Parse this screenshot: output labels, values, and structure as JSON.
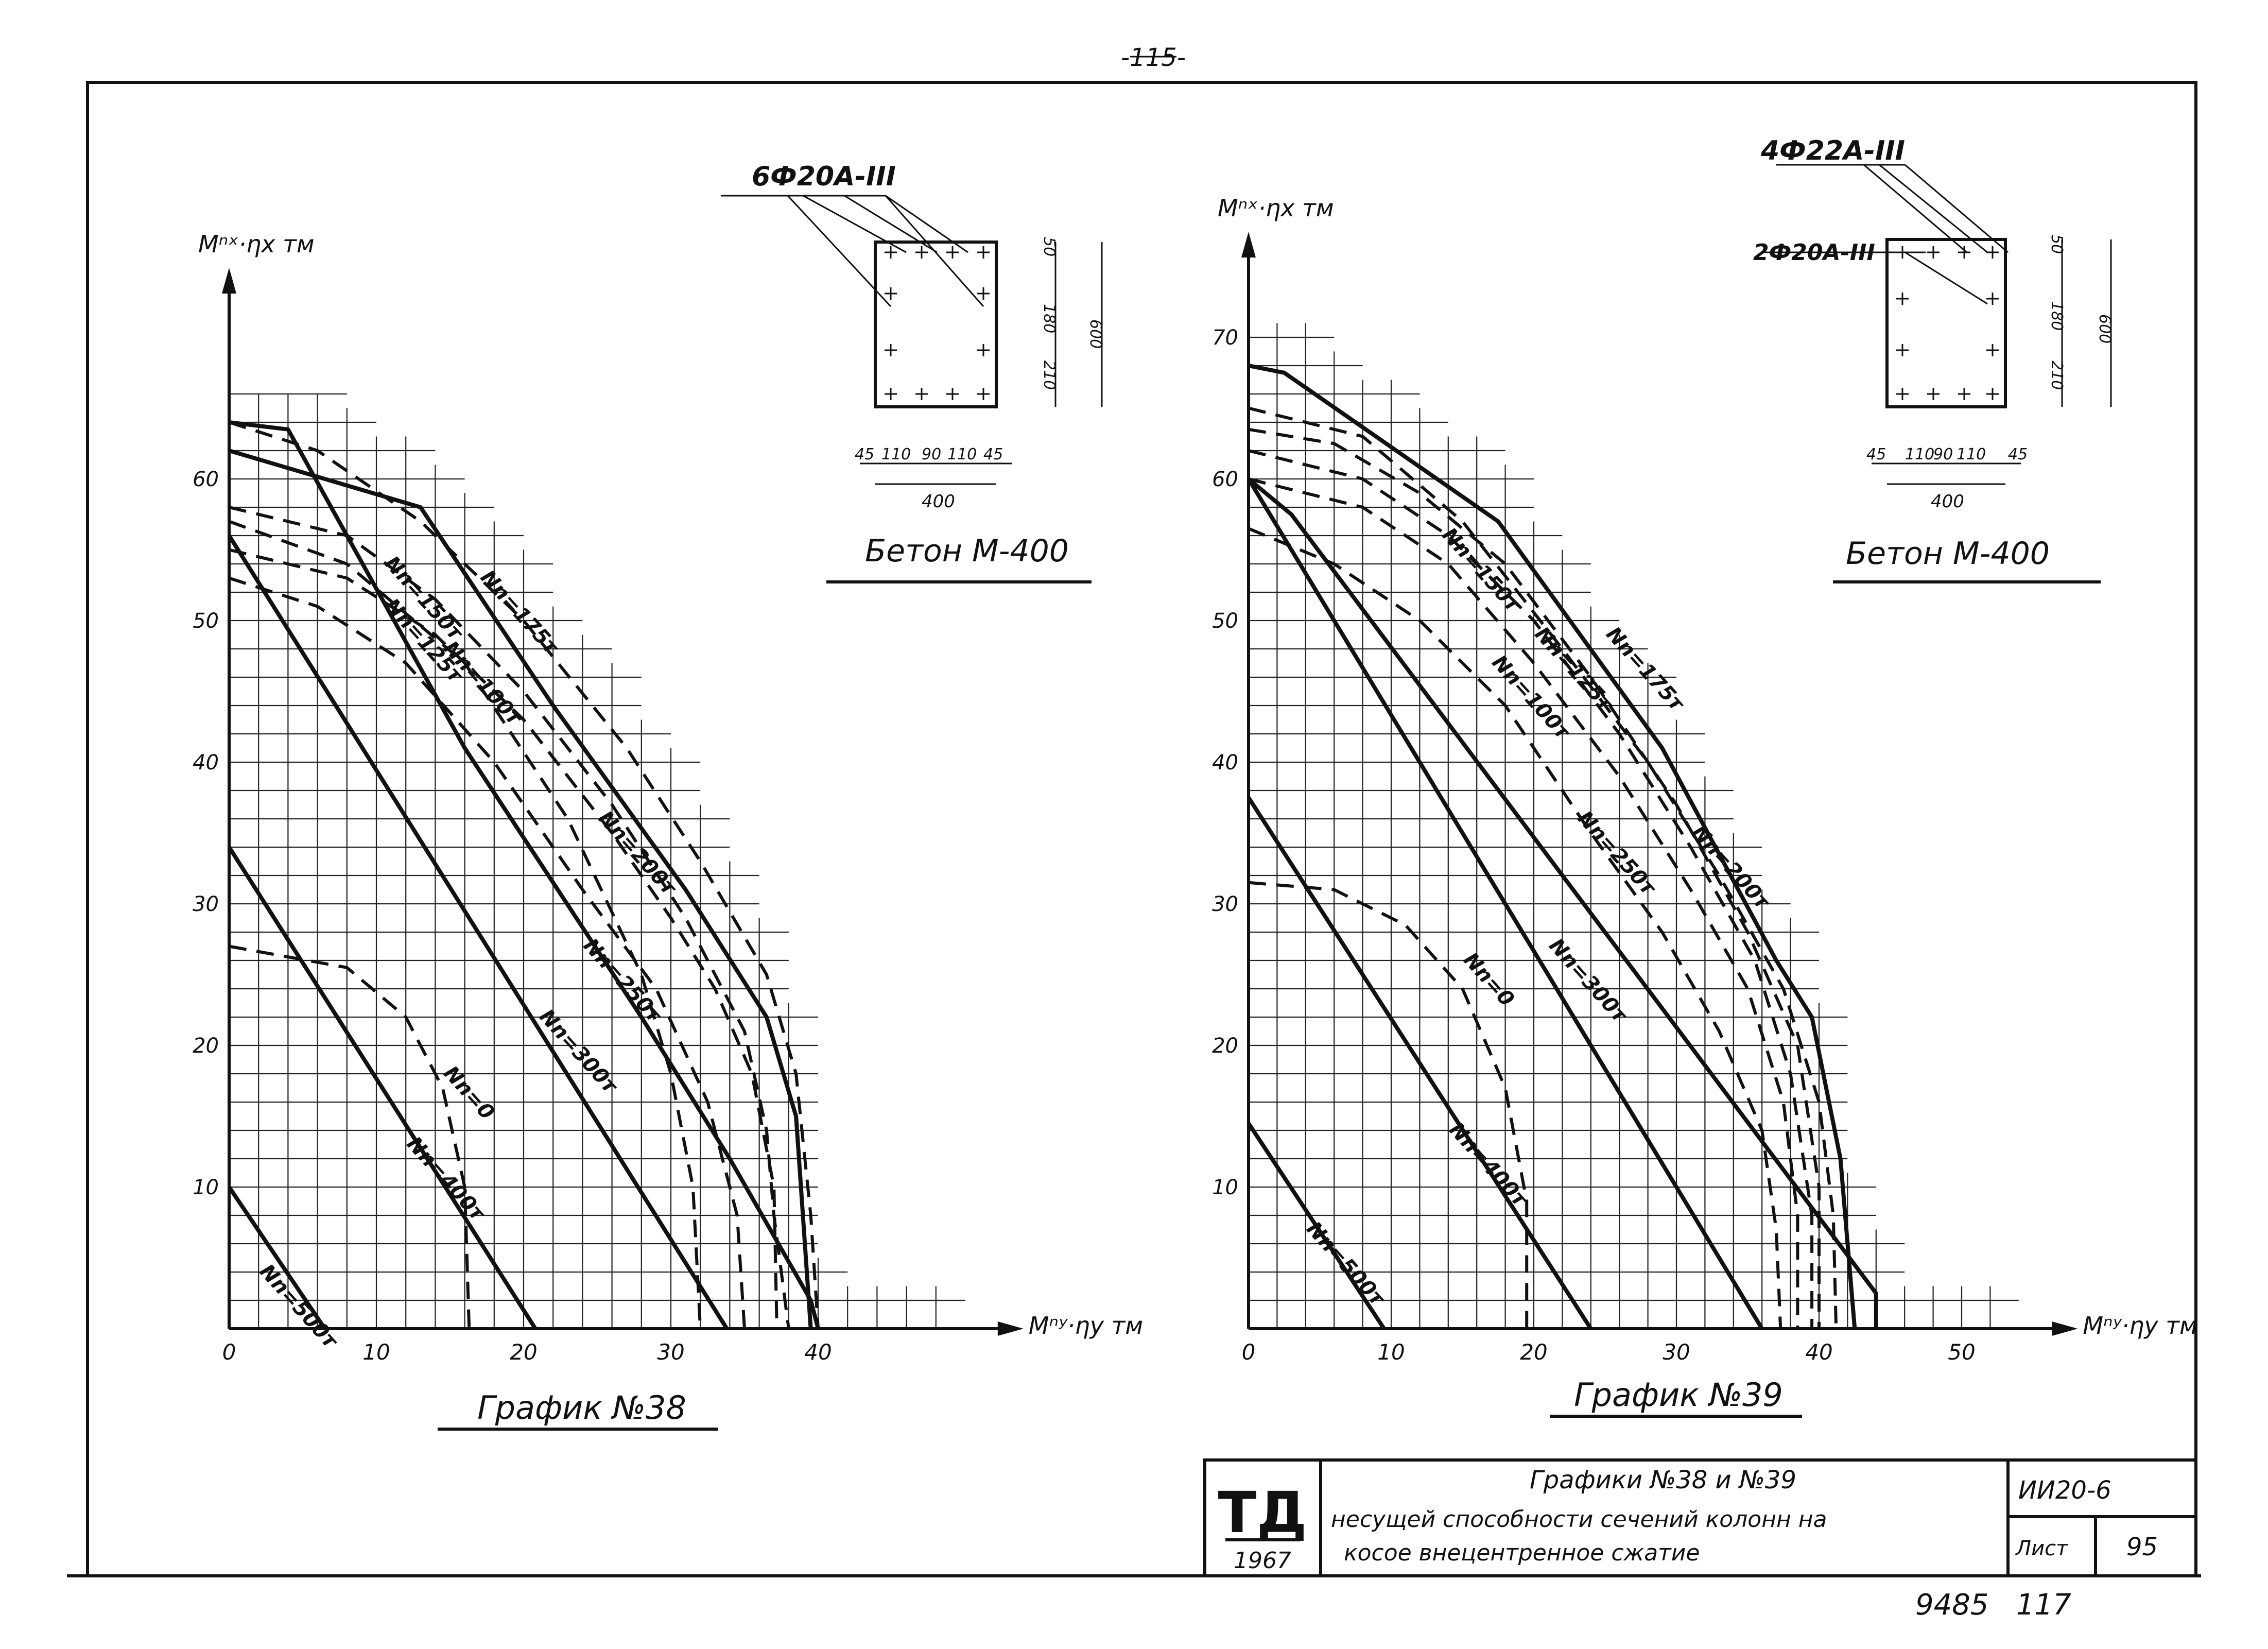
{
  "page_number": "-115-",
  "stamp": {
    "logo": "ТД",
    "year": "1967"
  },
  "title_block": {
    "line1": "Графики №38 и №39",
    "line2": "несущей способности сечений колонн на",
    "line3": "косое внецентренное сжатие",
    "code": "ИИ20-6",
    "sheet_label": "Лист",
    "sheet_number": "95"
  },
  "inventory": "9485   117",
  "chart_data": [
    {
      "type": "line",
      "title": "График №38",
      "xlabel": "Mⁿʸ·ηy тм",
      "ylabel": "Mⁿˣ·ηx тм",
      "xlim": [
        0,
        48
      ],
      "ylim": [
        0,
        66
      ],
      "xticks": [
        "0",
        "10",
        "20",
        "30",
        "40"
      ],
      "yticks": [
        "10",
        "20",
        "30",
        "40",
        "50",
        "60"
      ],
      "section": {
        "rebar": "6Ф20А-III",
        "concrete": "Бетон М-400",
        "width": "400",
        "height": "600",
        "dims_x": [
          "45",
          "110",
          "90",
          "110",
          "45"
        ],
        "dims_y": [
          "50",
          "180",
          "210",
          "600"
        ]
      },
      "series": [
        {
          "name": "Nn=500т",
          "style": "solid",
          "label_at": [
            2,
            4
          ],
          "points": [
            [
              0,
              10
            ],
            [
              6.5,
              0
            ]
          ]
        },
        {
          "name": "Nn=400т",
          "style": "solid",
          "label_at": [
            12,
            13
          ],
          "points": [
            [
              0,
              34
            ],
            [
              20.8,
              0
            ]
          ]
        },
        {
          "name": "Nn=0",
          "style": "dash",
          "label_at": [
            14.5,
            18
          ],
          "points": [
            [
              0,
              27
            ],
            [
              8,
              25.5
            ],
            [
              12,
              22
            ],
            [
              14.5,
              17
            ],
            [
              16,
              10
            ],
            [
              16.3,
              0
            ]
          ]
        },
        {
          "name": "Nn=300т",
          "style": "solid",
          "label_at": [
            21,
            22
          ],
          "points": [
            [
              0,
              56
            ],
            [
              33.8,
              0
            ]
          ]
        },
        {
          "name": "Nn=250т",
          "style": "dash",
          "label_at": [
            24,
            27
          ],
          "points": [
            [
              0,
              57
            ],
            [
              8,
              54
            ],
            [
              16,
              47
            ],
            [
              23,
              36
            ],
            [
              28,
              25
            ],
            [
              30,
              18
            ],
            [
              31.5,
              10
            ],
            [
              32,
              0
            ]
          ]
        },
        {
          "name": "Nn=100т",
          "style": "dash",
          "label_at": [
            14.5,
            48
          ],
          "points": [
            [
              0,
              53
            ],
            [
              6,
              51
            ],
            [
              12,
              47
            ],
            [
              18,
              40
            ],
            [
              24,
              31
            ],
            [
              29,
              24
            ],
            [
              32.5,
              16
            ],
            [
              34.5,
              8
            ],
            [
              35,
              0
            ]
          ]
        },
        {
          "name": "Nn=125т",
          "style": "dash",
          "label_at": [
            10.5,
            51
          ],
          "points": [
            [
              0,
              55
            ],
            [
              8,
              53
            ],
            [
              14,
              49
            ],
            [
              20,
              43
            ],
            [
              26,
              35
            ],
            [
              30,
              29
            ],
            [
              33,
              24
            ],
            [
              35.5,
              18
            ],
            [
              37,
              10
            ],
            [
              37.2,
              0
            ]
          ]
        },
        {
          "name": "Nn=150т",
          "style": "dash",
          "label_at": [
            10.5,
            54
          ],
          "points": [
            [
              0,
              58
            ],
            [
              8,
              56
            ],
            [
              14,
              51.5
            ],
            [
              20,
              45
            ],
            [
              26,
              37
            ],
            [
              31,
              29
            ],
            [
              35,
              21
            ],
            [
              36.5,
              14
            ],
            [
              37,
              8
            ],
            [
              38,
              0
            ]
          ]
        },
        {
          "name": "Nn=200т",
          "style": "solid",
          "label_at": [
            25,
            36
          ],
          "points": [
            [
              0,
              64
            ],
            [
              4,
              63.5
            ],
            [
              16,
              41
            ],
            [
              28,
              22
            ],
            [
              34,
              12
            ],
            [
              39.5,
              2
            ],
            [
              40,
              0
            ]
          ]
        },
        {
          "name": "Nn=175т",
          "style": "solid",
          "label_at": [
            17,
            53
          ],
          "points": [
            [
              0,
              62
            ],
            [
              13,
              58
            ],
            [
              22,
              44
            ],
            [
              31,
              31
            ],
            [
              36.5,
              22
            ],
            [
              38.5,
              15
            ],
            [
              39.5,
              0
            ]
          ]
        },
        {
          "name": "",
          "style": "dash",
          "points": [
            [
              0,
              64
            ],
            [
              6,
              62
            ],
            [
              13,
              57
            ],
            [
              20,
              50
            ],
            [
              27,
              41
            ],
            [
              32,
              33
            ],
            [
              36.5,
              25
            ],
            [
              38.5,
              18
            ],
            [
              39.5,
              8
            ],
            [
              40,
              0
            ]
          ]
        }
      ]
    },
    {
      "type": "line",
      "title": "График №39",
      "xlabel": "Mⁿʸ·ηy тм",
      "ylabel": "Mⁿˣ·ηx тм",
      "xlim": [
        0,
        52
      ],
      "ylim": [
        0,
        76
      ],
      "xticks": [
        "0",
        "10",
        "20",
        "30",
        "40",
        "50"
      ],
      "yticks": [
        "10",
        "20",
        "30",
        "40",
        "50",
        "60",
        "70"
      ],
      "section": {
        "rebar_main": "4Ф22А-III",
        "rebar_side": "2Ф20А-III",
        "concrete": "Бетон М-400",
        "width": "400",
        "height": "600",
        "dims_x": [
          "45",
          "110",
          "90",
          "110",
          "45"
        ],
        "dims_y": [
          "50",
          "180",
          "210",
          "600"
        ]
      },
      "series": [
        {
          "name": "Nn=500т",
          "style": "solid",
          "label_at": [
            4,
            7
          ],
          "points": [
            [
              0,
              14.5
            ],
            [
              9.5,
              0
            ]
          ]
        },
        {
          "name": "Nn=400т",
          "style": "solid",
          "label_at": [
            14,
            14
          ],
          "points": [
            [
              0,
              37.5
            ],
            [
              24,
              0
            ]
          ]
        },
        {
          "name": "Nn=0",
          "style": "dash",
          "label_at": [
            15,
            26
          ],
          "points": [
            [
              0,
              31.5
            ],
            [
              6,
              31
            ],
            [
              11,
              28.5
            ],
            [
              15,
              24
            ],
            [
              18,
              17
            ],
            [
              19.5,
              9
            ],
            [
              19.5,
              0
            ]
          ]
        },
        {
          "name": "Nn=300т",
          "style": "solid",
          "label_at": [
            21,
            27
          ],
          "points": [
            [
              0,
              60
            ],
            [
              36,
              0
            ]
          ]
        },
        {
          "name": "Nn=250т",
          "style": "dash",
          "label_at": [
            23,
            36
          ],
          "points": [
            [
              0,
              56.5
            ],
            [
              6,
              54
            ],
            [
              12,
              50
            ],
            [
              18,
              44
            ],
            [
              24,
              35
            ],
            [
              29,
              28
            ],
            [
              33,
              21
            ],
            [
              36,
              14
            ],
            [
              37,
              7
            ],
            [
              37.3,
              0
            ]
          ]
        },
        {
          "name": "Nn=100т",
          "style": "dash",
          "label_at": [
            17,
            47
          ],
          "points": [
            [
              0,
              60
            ],
            [
              8,
              58
            ],
            [
              14,
              54
            ],
            [
              20,
              47
            ],
            [
              26,
              39
            ],
            [
              31,
              31
            ],
            [
              35,
              24
            ],
            [
              37.5,
              16
            ],
            [
              38.5,
              8
            ],
            [
              38.5,
              0
            ]
          ]
        },
        {
          "name": "Nn=125т",
          "style": "dash",
          "label_at": [
            20,
            49
          ],
          "points": [
            [
              0,
              62
            ],
            [
              8,
              60
            ],
            [
              14,
              56
            ],
            [
              20,
              50
            ],
            [
              26,
              42
            ],
            [
              31,
              34
            ],
            [
              35.5,
              26
            ],
            [
              38,
              18
            ],
            [
              39.5,
              8
            ],
            [
              39.5,
              0
            ]
          ]
        },
        {
          "name": "Nn=150т",
          "style": "dash",
          "label_at": [
            13.5,
            56
          ],
          "points": [
            [
              0,
              63.5
            ],
            [
              6,
              62.5
            ],
            [
              12,
              59
            ],
            [
              18,
              54
            ],
            [
              24,
              46
            ],
            [
              30,
              37
            ],
            [
              35,
              28
            ],
            [
              38.5,
              20
            ],
            [
              40,
              10
            ],
            [
              40,
              0
            ]
          ]
        },
        {
          "name": "Nn=175т",
          "style": "solid",
          "label_at": [
            25,
            49
          ],
          "points": [
            [
              0,
              68
            ],
            [
              2.5,
              67.5
            ],
            [
              17.5,
              57
            ],
            [
              29,
              41
            ],
            [
              37,
              26
            ],
            [
              39.5,
              22
            ],
            [
              41.5,
              12
            ],
            [
              42.5,
              0
            ]
          ]
        },
        {
          "name": "Nn=200т",
          "style": "dash",
          "label_at": [
            31,
            35
          ],
          "points": [
            [
              0,
              65
            ],
            [
              8,
              63
            ],
            [
              15,
              57
            ],
            [
              22,
              48
            ],
            [
              28,
              40
            ],
            [
              33,
              32
            ],
            [
              37.5,
              24
            ],
            [
              40,
              16
            ],
            [
              41,
              8
            ],
            [
              41.2,
              0
            ]
          ]
        },
        {
          "name": "",
          "style": "solid",
          "points": [
            [
              0,
              60
            ],
            [
              3,
              57.5
            ],
            [
              44,
              2.5
            ],
            [
              44,
              0
            ]
          ]
        }
      ]
    }
  ]
}
